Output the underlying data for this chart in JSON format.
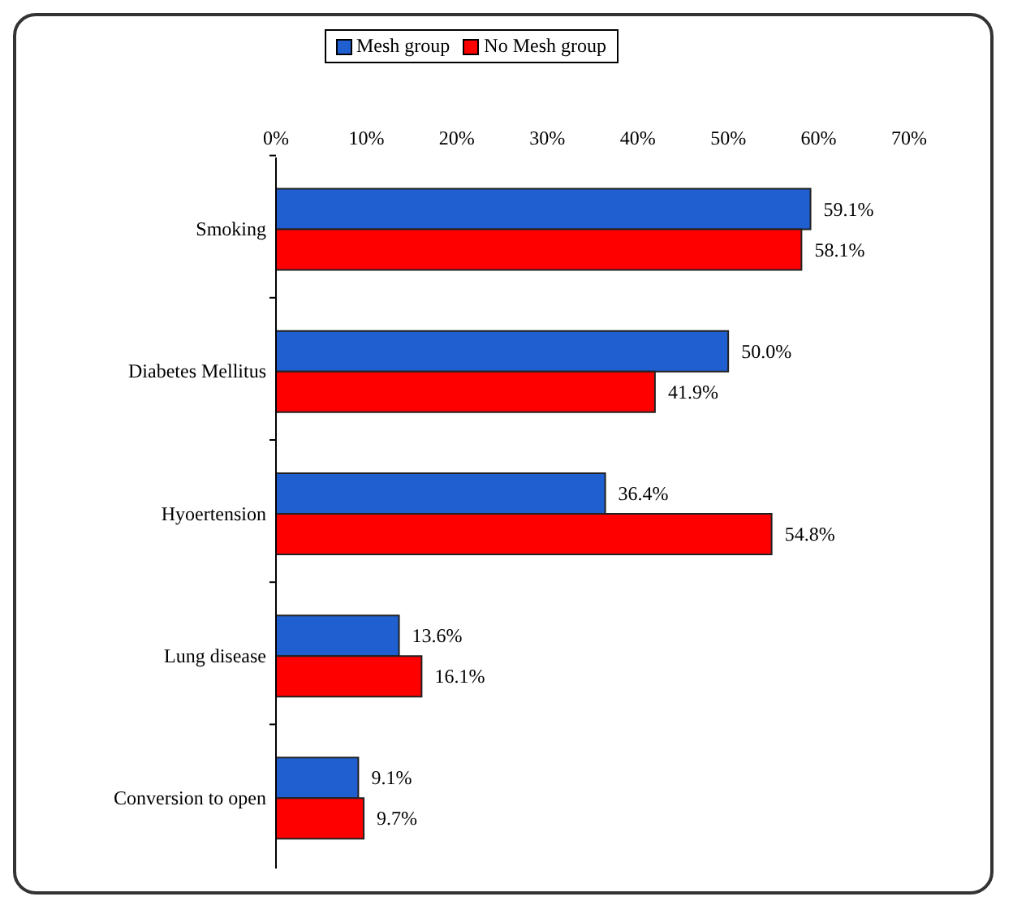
{
  "chart_data": {
    "type": "bar",
    "orientation": "horizontal",
    "categories": [
      "Smoking",
      "Diabetes Mellitus",
      "Hyoertension",
      "Lung disease",
      "Conversion to open"
    ],
    "series": [
      {
        "name": "Mesh group",
        "color": "#1f5fd0",
        "values": [
          59.1,
          50.0,
          36.4,
          13.6,
          9.1
        ],
        "value_labels": [
          "59.1%",
          "50.0%",
          "36.4%",
          "13.6%",
          "9.1%"
        ]
      },
      {
        "name": "No Mesh group",
        "color": "#ff0000",
        "values": [
          58.1,
          41.9,
          54.8,
          16.1,
          9.7
        ],
        "value_labels": [
          "58.1%",
          "41.9%",
          "54.8%",
          "16.1%",
          "9.7%"
        ]
      }
    ],
    "xlim": [
      0,
      70
    ],
    "xticks": [
      {
        "value": 0,
        "label": "0%"
      },
      {
        "value": 10,
        "label": "10%"
      },
      {
        "value": 20,
        "label": "20%"
      },
      {
        "value": 30,
        "label": "30%"
      },
      {
        "value": 40,
        "label": "40%"
      },
      {
        "value": 50,
        "label": "50%"
      },
      {
        "value": 60,
        "label": "60%"
      },
      {
        "value": 70,
        "label": "70%"
      }
    ],
    "legend": "top",
    "grid": false
  }
}
